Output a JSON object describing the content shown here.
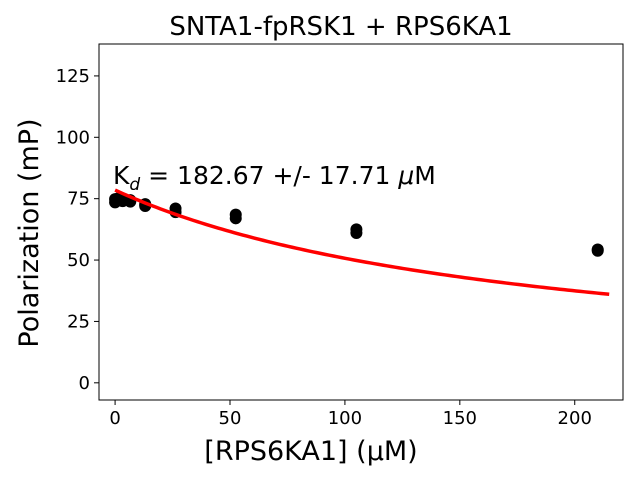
{
  "chart_data": {
    "type": "scatter",
    "title": "SNTA1-fpRSK1 + RPS6KA1",
    "xlabel": "[RPS6KA1] (μM)",
    "ylabel": "Polarization (mP)",
    "xlim": [
      -7,
      221
    ],
    "ylim": [
      -7,
      138
    ],
    "xticks": [
      0,
      50,
      100,
      150,
      200
    ],
    "yticks": [
      0,
      25,
      50,
      75,
      100,
      125
    ],
    "grid": false,
    "annotation": {
      "prefix": "K",
      "subscript": "d",
      "text": " = 182.67 +/- 17.71 ",
      "mu": "μ",
      "unit": "M"
    },
    "points": {
      "color": "#000000",
      "x": [
        0,
        0,
        1.6,
        1.6,
        3.3,
        3.3,
        6.6,
        6.6,
        13.1,
        13.1,
        26.3,
        26.3,
        52.5,
        52.5,
        105,
        105,
        210,
        210
      ],
      "y": [
        73.5,
        74.8,
        74.5,
        75.2,
        74.0,
        74.6,
        73.8,
        74.4,
        72.0,
        72.8,
        69.5,
        71.0,
        67.0,
        68.5,
        61.0,
        62.5,
        53.8,
        54.3
      ]
    },
    "fit": {
      "color": "#ff0000",
      "x_range": [
        0,
        215
      ],
      "top": 78.5,
      "bottom": 0,
      "kd": 182.67,
      "tracer": 0
    }
  }
}
